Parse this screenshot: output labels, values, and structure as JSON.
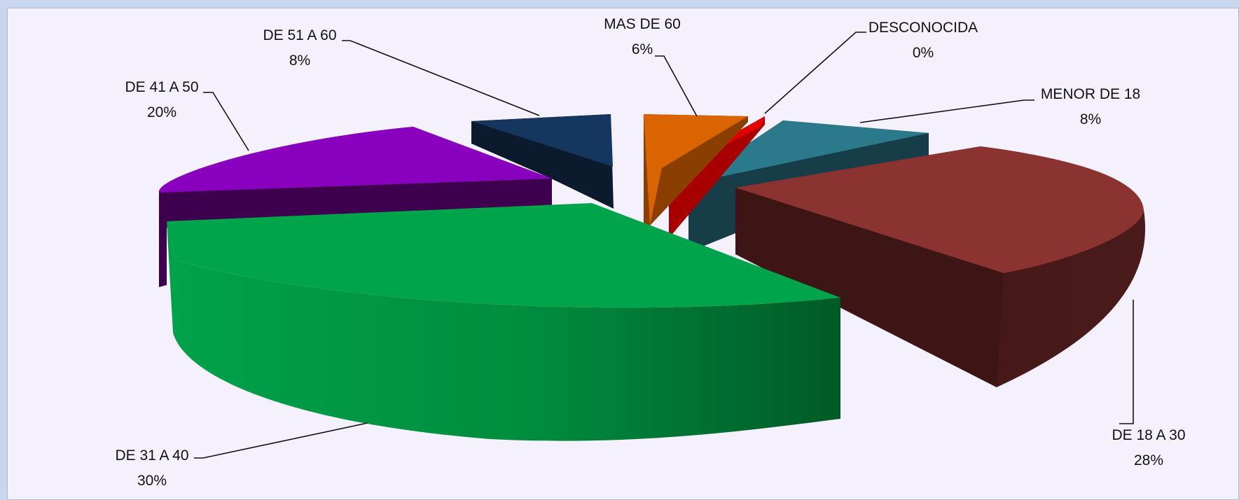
{
  "chart_data": {
    "type": "pie",
    "title": "",
    "three_d": true,
    "exploded": true,
    "legend": "none",
    "slices": [
      {
        "label": "MENOR DE 18",
        "value": 8,
        "value_label": "8%",
        "color": "#2b7a8c"
      },
      {
        "label": "DE 18 A 30",
        "value": 28,
        "value_label": "28%",
        "color": "#8b3330"
      },
      {
        "label": "DE 31 A 40",
        "value": 30,
        "value_label": "30%",
        "color": "#00a44a"
      },
      {
        "label": "DE 41 A 50",
        "value": 20,
        "value_label": "20%",
        "color": "#8a00bf"
      },
      {
        "label": "DE 51 A 60",
        "value": 8,
        "value_label": "8%",
        "color": "#15365e"
      },
      {
        "label": "MAS DE 60",
        "value": 6,
        "value_label": "6%",
        "color": "#d96400"
      },
      {
        "label": "DESCONOCIDA",
        "value": 0,
        "value_label": "0%",
        "color": "#d40000"
      }
    ]
  }
}
